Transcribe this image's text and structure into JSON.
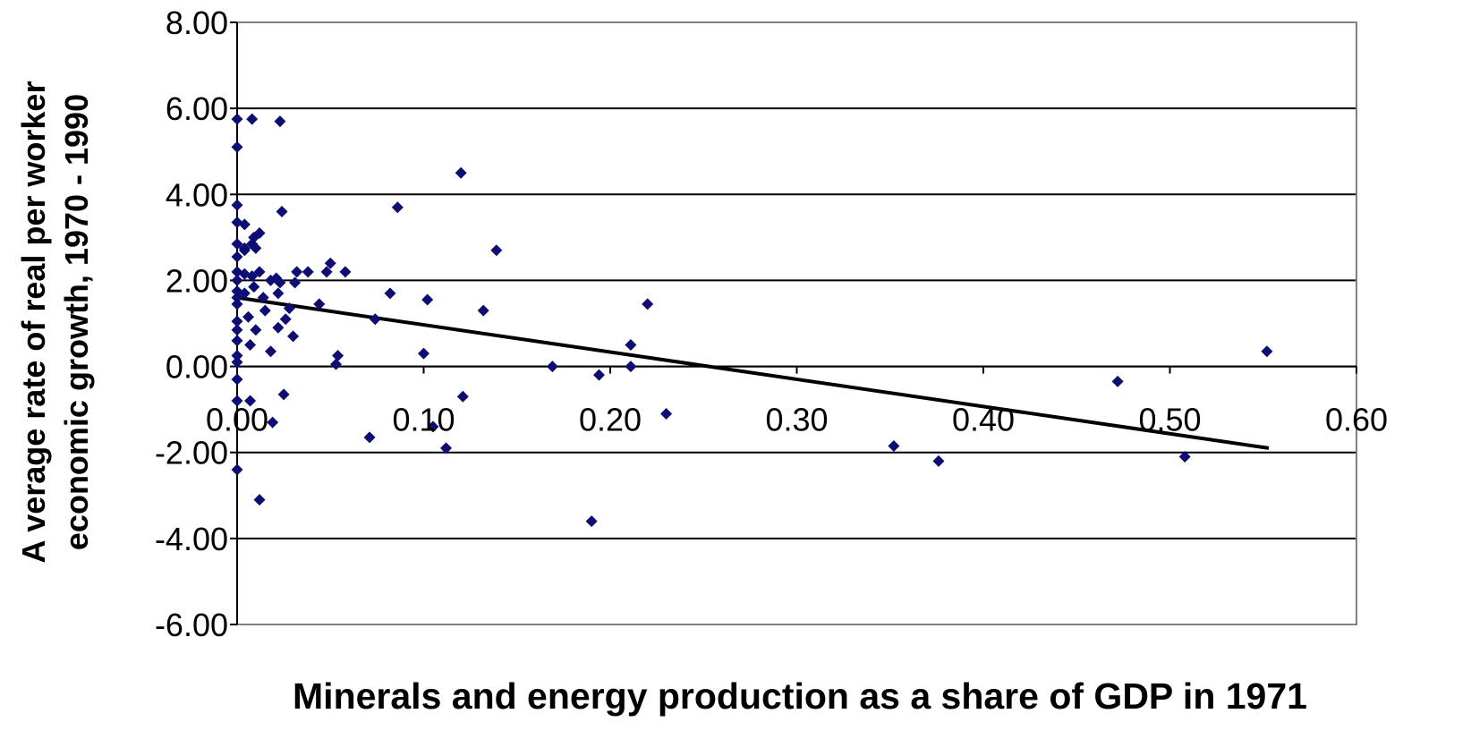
{
  "chart_data": {
    "type": "scatter",
    "title": "",
    "xlabel": "Minerals and energy production as a share of GDP in 1971",
    "ylabel_lines": [
      "A verage rate of real per worker",
      "economic growth, 1970 - 1990"
    ],
    "xlim": [
      0.0,
      0.6
    ],
    "ylim": [
      -6.0,
      8.0
    ],
    "x_ticks": [
      0.0,
      0.1,
      0.2,
      0.3,
      0.4,
      0.5,
      0.6
    ],
    "x_tick_labels": [
      "0.00",
      "0.10",
      "0.20",
      "0.30",
      "0.40",
      "0.50",
      "0.60"
    ],
    "y_ticks": [
      8.0,
      6.0,
      4.0,
      2.0,
      0.0,
      -2.0,
      -4.0,
      -6.0
    ],
    "y_tick_labels": [
      "8.00",
      "6.00",
      "4.00",
      "2.00",
      "0.00",
      "-2.00",
      "-4.00",
      "-6.00"
    ],
    "grid": "horizontal",
    "legend": "none",
    "colors": {
      "points": "#0d0d7a",
      "trendline": "#000000",
      "gridline": "#000000",
      "plot_border": "#808080",
      "text": "#000000"
    },
    "trendline": {
      "x": [
        0.0,
        0.553
      ],
      "y": [
        1.6,
        -1.9
      ]
    },
    "series": [
      {
        "points": [
          [
            0.0,
            5.75
          ],
          [
            0.0,
            5.1
          ],
          [
            0.0,
            3.75
          ],
          [
            0.0,
            3.35
          ],
          [
            0.0,
            2.85
          ],
          [
            0.0,
            2.55
          ],
          [
            0.0,
            2.2
          ],
          [
            0.0,
            2.0
          ],
          [
            0.0,
            1.75
          ],
          [
            0.0,
            1.6
          ],
          [
            0.0,
            1.45
          ],
          [
            0.0,
            1.05
          ],
          [
            0.0,
            0.85
          ],
          [
            0.0,
            0.6
          ],
          [
            0.0,
            0.25
          ],
          [
            0.0,
            0.1
          ],
          [
            0.0,
            -0.3
          ],
          [
            0.0,
            -0.8
          ],
          [
            0.0,
            -2.4
          ],
          [
            0.004,
            3.3
          ],
          [
            0.004,
            2.7
          ],
          [
            0.004,
            2.15
          ],
          [
            0.004,
            1.7
          ],
          [
            0.004,
            2.75
          ],
          [
            0.006,
            1.15
          ],
          [
            0.007,
            0.5
          ],
          [
            0.007,
            -0.8
          ],
          [
            0.008,
            5.75
          ],
          [
            0.008,
            2.85
          ],
          [
            0.008,
            2.1
          ],
          [
            0.009,
            1.85
          ],
          [
            0.009,
            3.0
          ],
          [
            0.01,
            0.85
          ],
          [
            0.01,
            2.75
          ],
          [
            0.012,
            3.1
          ],
          [
            0.012,
            2.2
          ],
          [
            0.012,
            -3.1
          ],
          [
            0.014,
            1.6
          ],
          [
            0.015,
            1.3
          ],
          [
            0.018,
            2.0
          ],
          [
            0.018,
            0.35
          ],
          [
            0.019,
            -1.3
          ],
          [
            0.021,
            2.05
          ],
          [
            0.022,
            1.7
          ],
          [
            0.022,
            0.9
          ],
          [
            0.023,
            1.95
          ],
          [
            0.023,
            5.7
          ],
          [
            0.024,
            3.6
          ],
          [
            0.025,
            -0.65
          ],
          [
            0.026,
            1.1
          ],
          [
            0.028,
            1.35
          ],
          [
            0.03,
            0.7
          ],
          [
            0.031,
            1.95
          ],
          [
            0.032,
            2.2
          ],
          [
            0.038,
            2.2
          ],
          [
            0.044,
            1.45
          ],
          [
            0.048,
            2.2
          ],
          [
            0.05,
            2.4
          ],
          [
            0.053,
            0.05
          ],
          [
            0.054,
            0.25
          ],
          [
            0.058,
            2.2
          ],
          [
            0.071,
            -1.65
          ],
          [
            0.074,
            1.1
          ],
          [
            0.082,
            1.7
          ],
          [
            0.086,
            3.7
          ],
          [
            0.1,
            0.3
          ],
          [
            0.102,
            1.55
          ],
          [
            0.105,
            -1.4
          ],
          [
            0.112,
            -1.9
          ],
          [
            0.12,
            4.5
          ],
          [
            0.121,
            -0.7
          ],
          [
            0.132,
            1.3
          ],
          [
            0.139,
            2.7
          ],
          [
            0.169,
            0.0
          ],
          [
            0.19,
            -3.6
          ],
          [
            0.194,
            -0.2
          ],
          [
            0.211,
            0.5
          ],
          [
            0.211,
            0.0
          ],
          [
            0.22,
            1.45
          ],
          [
            0.23,
            -1.1
          ],
          [
            0.352,
            -1.85
          ],
          [
            0.376,
            -2.2
          ],
          [
            0.472,
            -0.35
          ],
          [
            0.508,
            -2.1
          ],
          [
            0.552,
            0.35
          ]
        ]
      }
    ]
  }
}
